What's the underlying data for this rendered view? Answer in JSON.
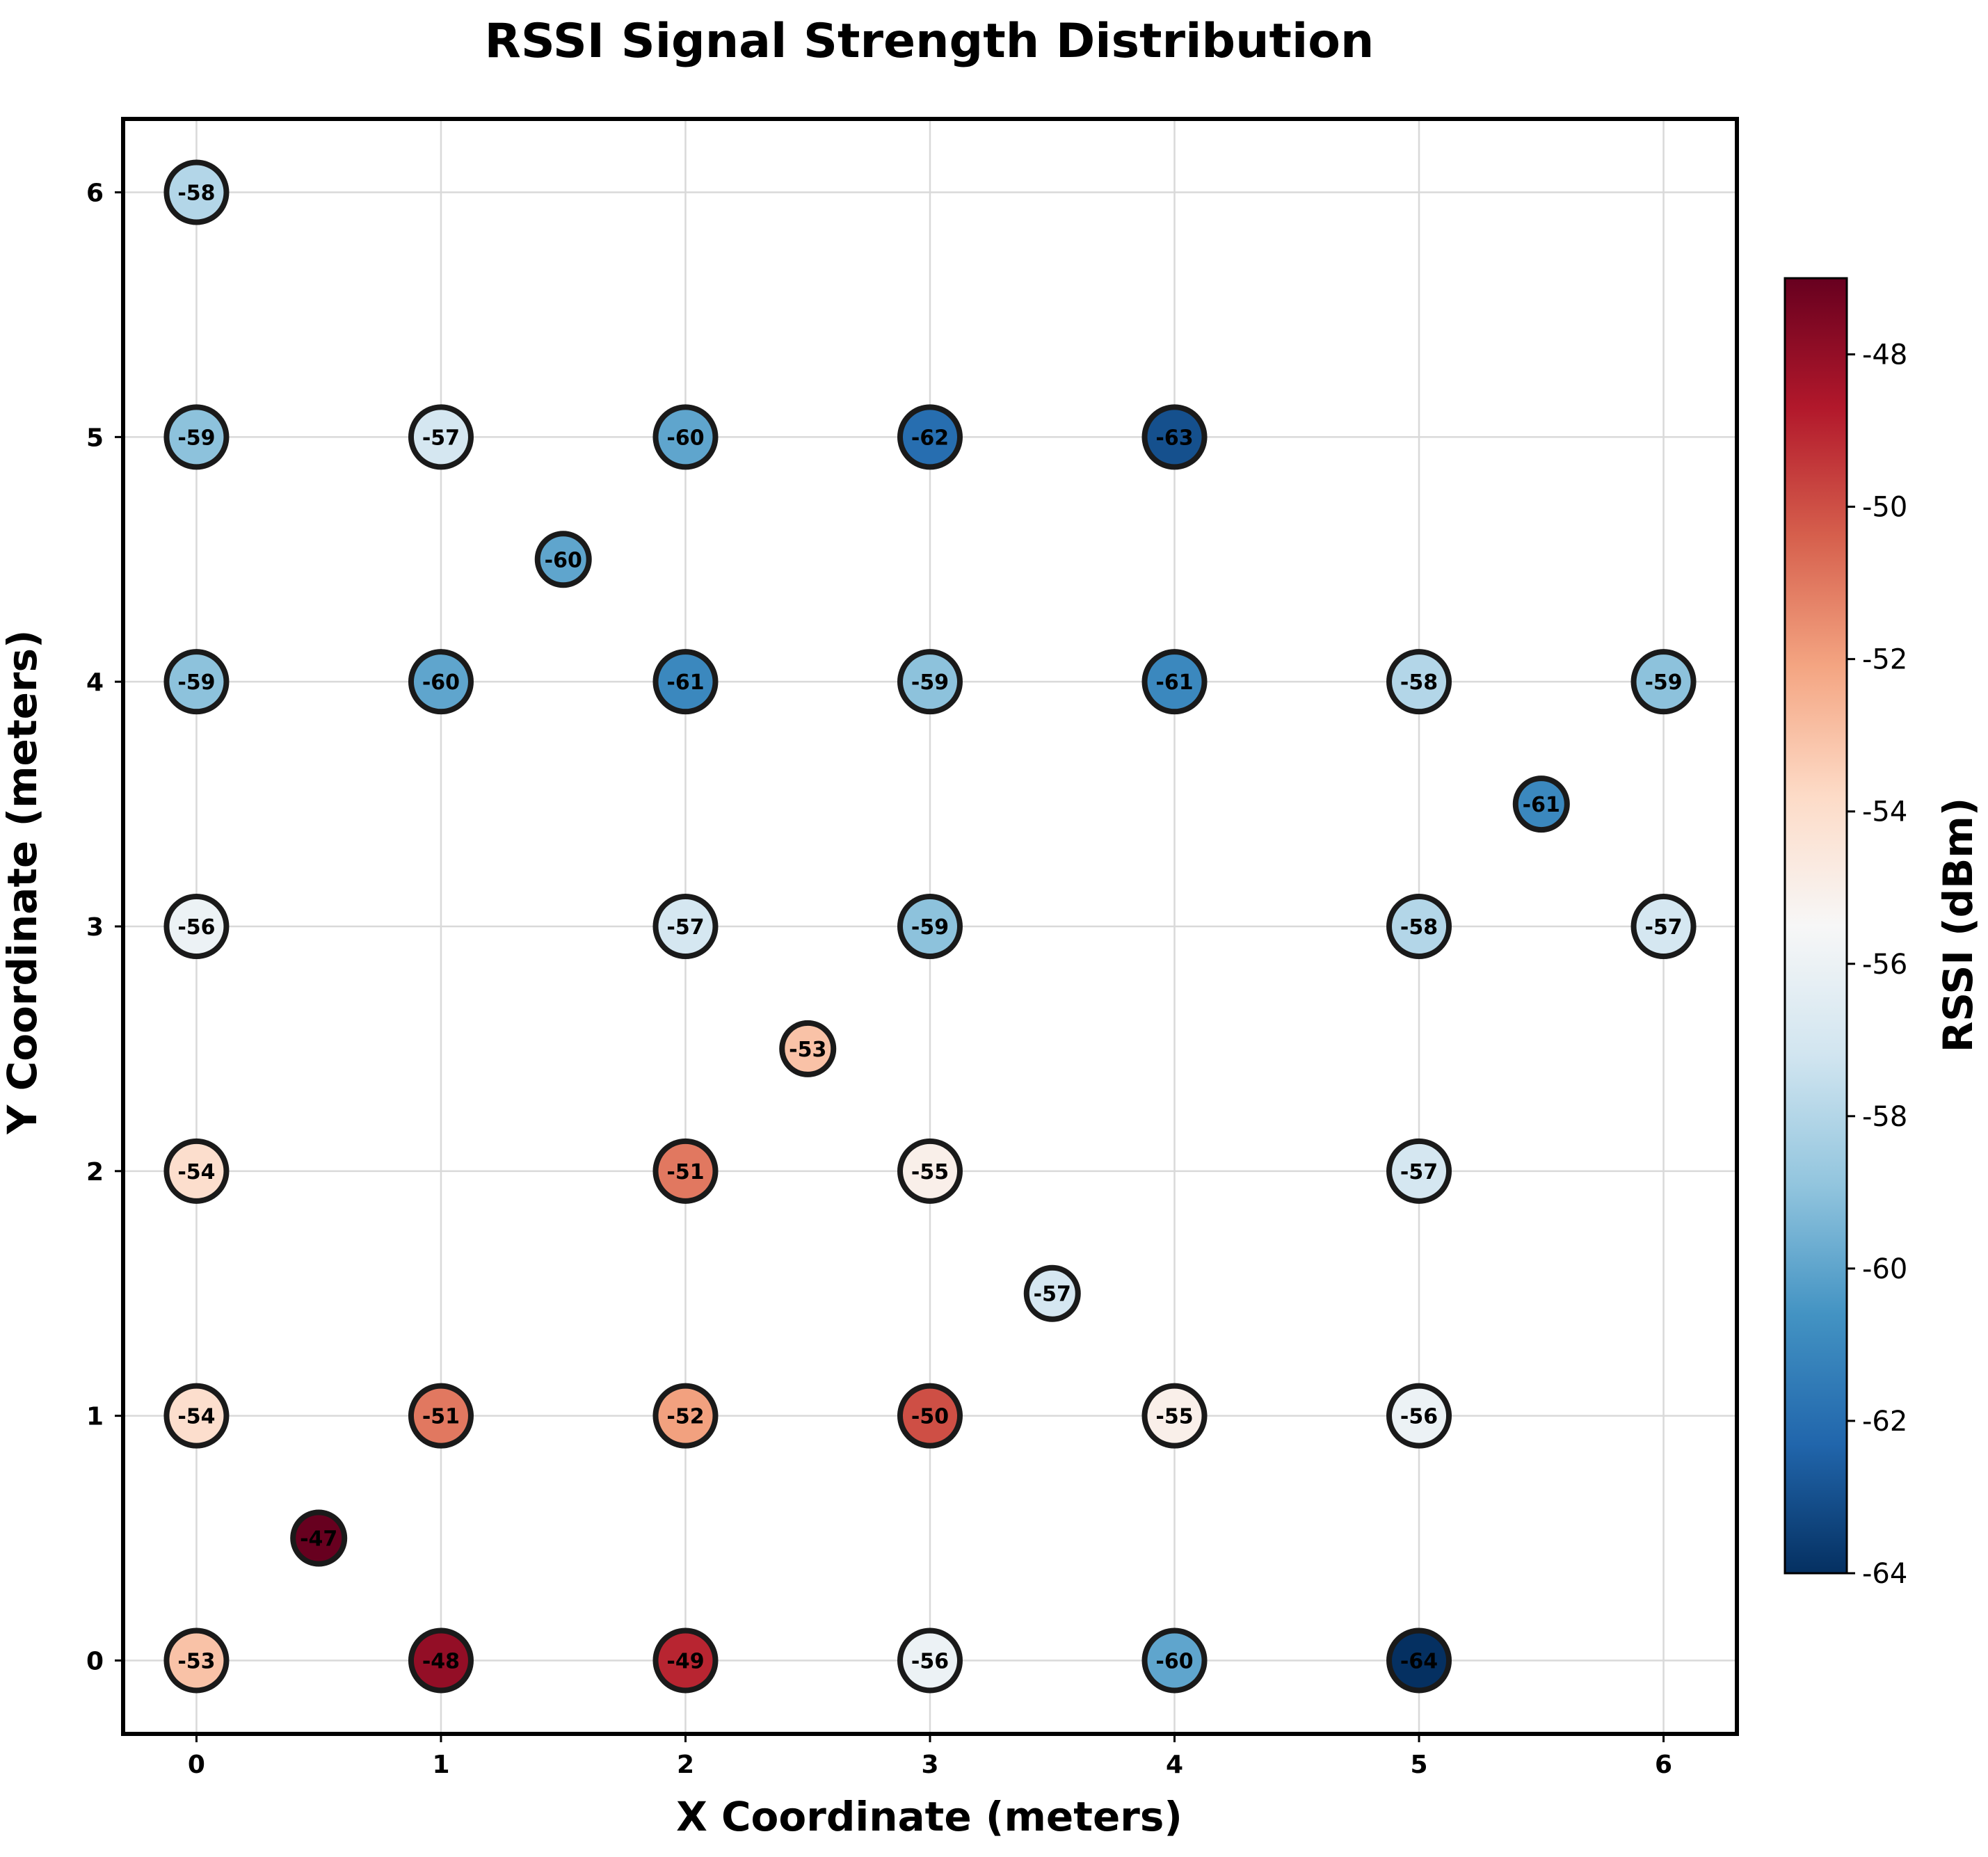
{
  "chart_data": {
    "type": "scatter",
    "title": "RSSI Signal Strength Distribution",
    "xlabel": "X Coordinate (meters)",
    "ylabel": "Y Coordinate (meters)",
    "xlim": [
      -0.3,
      6.3
    ],
    "ylim": [
      -0.3,
      6.3
    ],
    "xticks": [
      "0",
      "1",
      "2",
      "3",
      "4",
      "5",
      "6"
    ],
    "yticks": [
      "0",
      "1",
      "2",
      "3",
      "4",
      "5",
      "6"
    ],
    "grid": true,
    "colormap": "RdBu_r",
    "colorbar": {
      "label": "RSSI (dBm)",
      "range": [
        -64,
        -47
      ],
      "ticks": [
        "-48",
        "-50",
        "-52",
        "-54",
        "-56",
        "-58",
        "-60",
        "-62",
        "-64"
      ]
    },
    "points": [
      {
        "x": 0,
        "y": 6,
        "rssi": -58,
        "label": "-58"
      },
      {
        "x": 0,
        "y": 5,
        "rssi": -59,
        "label": "-59"
      },
      {
        "x": 1,
        "y": 5,
        "rssi": -57,
        "label": "-57"
      },
      {
        "x": 2,
        "y": 5,
        "rssi": -60,
        "label": "-60"
      },
      {
        "x": 3,
        "y": 5,
        "rssi": -62,
        "label": "-62"
      },
      {
        "x": 4,
        "y": 5,
        "rssi": -63,
        "label": "-63"
      },
      {
        "x": 1.5,
        "y": 4.5,
        "rssi": -60,
        "label": "-60"
      },
      {
        "x": 0,
        "y": 4,
        "rssi": -59,
        "label": "-59"
      },
      {
        "x": 1,
        "y": 4,
        "rssi": -60,
        "label": "-60"
      },
      {
        "x": 2,
        "y": 4,
        "rssi": -61,
        "label": "-61"
      },
      {
        "x": 3,
        "y": 4,
        "rssi": -59,
        "label": "-59"
      },
      {
        "x": 4,
        "y": 4,
        "rssi": -61,
        "label": "-61"
      },
      {
        "x": 5,
        "y": 4,
        "rssi": -58,
        "label": "-58"
      },
      {
        "x": 6,
        "y": 4,
        "rssi": -59,
        "label": "-59"
      },
      {
        "x": 5.5,
        "y": 3.5,
        "rssi": -61,
        "label": "-61"
      },
      {
        "x": 0,
        "y": 3,
        "rssi": -56,
        "label": "-56"
      },
      {
        "x": 2,
        "y": 3,
        "rssi": -57,
        "label": "-57"
      },
      {
        "x": 3,
        "y": 3,
        "rssi": -59,
        "label": "-59"
      },
      {
        "x": 5,
        "y": 3,
        "rssi": -58,
        "label": "-58"
      },
      {
        "x": 6,
        "y": 3,
        "rssi": -57,
        "label": "-57"
      },
      {
        "x": 2.5,
        "y": 2.5,
        "rssi": -53,
        "label": "-53"
      },
      {
        "x": 0,
        "y": 2,
        "rssi": -54,
        "label": "-54"
      },
      {
        "x": 2,
        "y": 2,
        "rssi": -51,
        "label": "-51"
      },
      {
        "x": 3,
        "y": 2,
        "rssi": -55,
        "label": "-55"
      },
      {
        "x": 5,
        "y": 2,
        "rssi": -57,
        "label": "-57"
      },
      {
        "x": 3.5,
        "y": 1.5,
        "rssi": -57,
        "label": "-57"
      },
      {
        "x": 0,
        "y": 1,
        "rssi": -54,
        "label": "-54"
      },
      {
        "x": 1,
        "y": 1,
        "rssi": -51,
        "label": "-51"
      },
      {
        "x": 2,
        "y": 1,
        "rssi": -52,
        "label": "-52"
      },
      {
        "x": 3,
        "y": 1,
        "rssi": -50,
        "label": "-50"
      },
      {
        "x": 4,
        "y": 1,
        "rssi": -55,
        "label": "-55"
      },
      {
        "x": 5,
        "y": 1,
        "rssi": -56,
        "label": "-56"
      },
      {
        "x": 0.5,
        "y": 0.5,
        "rssi": -47,
        "label": "-47"
      },
      {
        "x": 0,
        "y": 0,
        "rssi": -53,
        "label": "-53"
      },
      {
        "x": 1,
        "y": 0,
        "rssi": -48,
        "label": "-48"
      },
      {
        "x": 2,
        "y": 0,
        "rssi": -49,
        "label": "-49"
      },
      {
        "x": 3,
        "y": 0,
        "rssi": -56,
        "label": "-56"
      },
      {
        "x": 4,
        "y": 0,
        "rssi": -60,
        "label": "-60"
      },
      {
        "x": 5,
        "y": 0,
        "rssi": -64,
        "label": "-64"
      }
    ]
  }
}
